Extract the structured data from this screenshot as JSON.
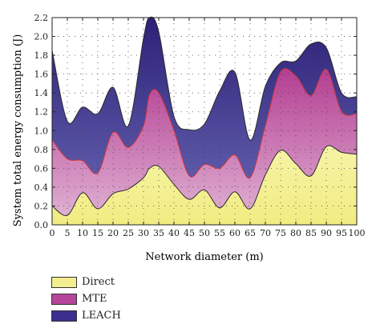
{
  "chart_data": {
    "type": "area",
    "stacked": true,
    "xlabel": "Network diameter (m)",
    "ylabel": "System total energy consumption (J)",
    "xlim": [
      0,
      100
    ],
    "ylim": [
      0,
      2.2
    ],
    "xticks": [
      "0",
      "5",
      "10",
      "15",
      "20",
      "25",
      "30",
      "35",
      "40",
      "45",
      "50",
      "55",
      "60",
      "65",
      "70",
      "75",
      "80",
      "85",
      "90",
      "95",
      "100"
    ],
    "yticks": [
      "0.0",
      "0.2",
      "0.4",
      "0.6",
      "0.8",
      "1.0",
      "1.2",
      "1.4",
      "1.6",
      "1.8",
      "2.0",
      "2.2"
    ],
    "grid": "dotted",
    "legend_position": "bottom-left",
    "x": [
      0,
      5,
      10,
      15,
      20,
      25,
      30,
      32,
      35,
      40,
      45,
      50,
      55,
      60,
      65,
      70,
      75,
      80,
      85,
      90,
      95,
      100
    ],
    "series": [
      {
        "name": "Direct",
        "color": "#f2ee90",
        "values": [
          0.2,
          0.1,
          0.34,
          0.17,
          0.33,
          0.38,
          0.5,
          0.6,
          0.62,
          0.43,
          0.27,
          0.37,
          0.18,
          0.35,
          0.17,
          0.53,
          0.79,
          0.65,
          0.52,
          0.83,
          0.77,
          0.75
        ]
      },
      {
        "name": "MTE",
        "color": "#b5479b",
        "values": [
          0.9,
          0.7,
          0.68,
          0.55,
          0.98,
          0.82,
          1.05,
          1.38,
          1.4,
          1.0,
          0.52,
          0.64,
          0.6,
          0.74,
          0.5,
          1.05,
          1.62,
          1.58,
          1.37,
          1.65,
          1.2,
          1.18
        ]
      },
      {
        "name": "LEACH",
        "color": "#3a2e8f",
        "values": [
          1.85,
          1.1,
          1.25,
          1.18,
          1.46,
          1.05,
          1.98,
          2.2,
          2.05,
          1.15,
          1.01,
          1.07,
          1.42,
          1.62,
          0.9,
          1.47,
          1.72,
          1.74,
          1.92,
          1.88,
          1.4,
          1.36
        ]
      }
    ]
  }
}
